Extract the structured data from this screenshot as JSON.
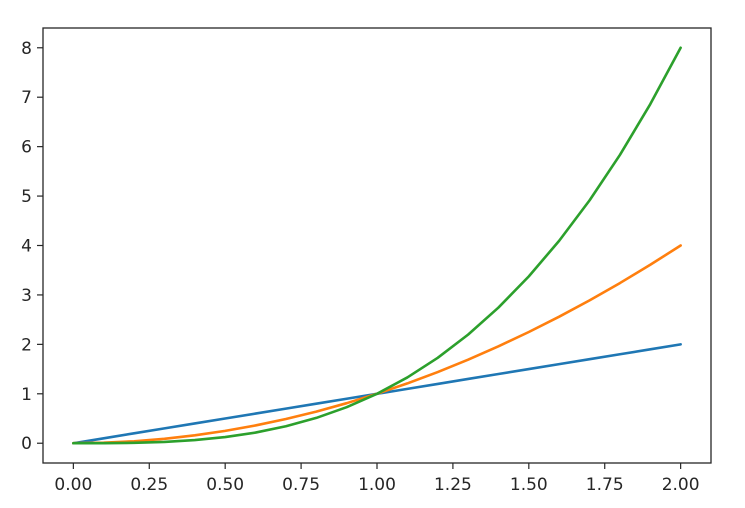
{
  "chart_data": {
    "type": "line",
    "title": "",
    "xlabel": "",
    "ylabel": "",
    "xlim": [
      -0.1,
      2.1
    ],
    "ylim": [
      -0.4,
      8.4
    ],
    "grid": false,
    "x_ticks": [
      {
        "value": 0.0,
        "label": "0.00"
      },
      {
        "value": 0.25,
        "label": "0.25"
      },
      {
        "value": 0.5,
        "label": "0.50"
      },
      {
        "value": 0.75,
        "label": "0.75"
      },
      {
        "value": 1.0,
        "label": "1.00"
      },
      {
        "value": 1.25,
        "label": "1.25"
      },
      {
        "value": 1.5,
        "label": "1.50"
      },
      {
        "value": 1.75,
        "label": "1.75"
      },
      {
        "value": 2.0,
        "label": "2.00"
      }
    ],
    "y_ticks": [
      {
        "value": 0,
        "label": "0"
      },
      {
        "value": 1,
        "label": "1"
      },
      {
        "value": 2,
        "label": "2"
      },
      {
        "value": 3,
        "label": "3"
      },
      {
        "value": 4,
        "label": "4"
      },
      {
        "value": 5,
        "label": "5"
      },
      {
        "value": 6,
        "label": "6"
      },
      {
        "value": 7,
        "label": "7"
      },
      {
        "value": 8,
        "label": "8"
      }
    ],
    "x": [
      0.0,
      0.1,
      0.2,
      0.3,
      0.4,
      0.5,
      0.6,
      0.7,
      0.8,
      0.9,
      1.0,
      1.1,
      1.2,
      1.3,
      1.4,
      1.5,
      1.6,
      1.7,
      1.8,
      1.9,
      2.0
    ],
    "series": [
      {
        "color": "#1f77b4",
        "values": [
          0.0,
          0.1,
          0.2,
          0.3,
          0.4,
          0.5,
          0.6,
          0.7,
          0.8,
          0.9,
          1.0,
          1.1,
          1.2,
          1.3,
          1.4,
          1.5,
          1.6,
          1.7,
          1.8,
          1.9,
          2.0
        ]
      },
      {
        "color": "#ff7f0e",
        "values": [
          0.0,
          0.01,
          0.04,
          0.09,
          0.16,
          0.25,
          0.36,
          0.49,
          0.64,
          0.81,
          1.0,
          1.21,
          1.44,
          1.69,
          1.96,
          2.25,
          2.56,
          2.89,
          3.24,
          3.61,
          4.0
        ]
      },
      {
        "color": "#2ca02c",
        "values": [
          0.0,
          0.001,
          0.008,
          0.027,
          0.064,
          0.125,
          0.216,
          0.343,
          0.512,
          0.729,
          1.0,
          1.331,
          1.728,
          2.197,
          2.744,
          3.375,
          4.096,
          4.913,
          5.832,
          6.859,
          8.0
        ]
      }
    ]
  }
}
